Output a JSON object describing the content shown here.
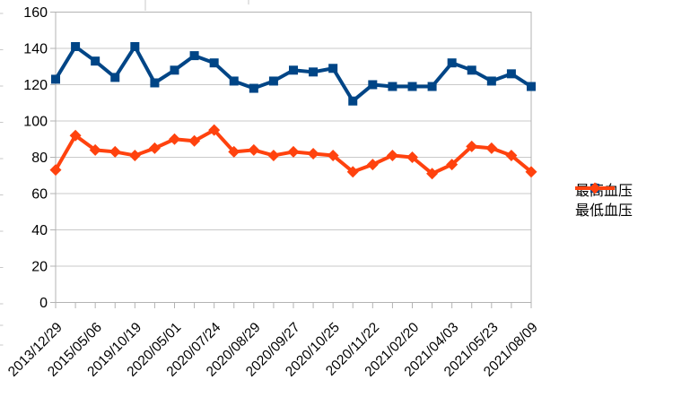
{
  "colors": {
    "background": "#ffffff",
    "axis": "#b3b3b3",
    "grid": "#c9c9c9",
    "text": "#000000",
    "artifact": "#c9c9c9"
  },
  "chart_data": {
    "type": "line",
    "title": "",
    "xlabel": "",
    "ylabel": "",
    "ylim": [
      0,
      160
    ],
    "y_ticks": [
      0,
      20,
      40,
      60,
      80,
      100,
      120,
      140,
      160
    ],
    "grid": "horizontal",
    "legend_position": "right",
    "x_label_every_n_points": 2,
    "x_labels": [
      "2013/12/29",
      "2015/05/06",
      "2019/10/19",
      "2020/05/01",
      "2020/07/24",
      "2020/08/29",
      "2020/09/27",
      "2020/10/25",
      "2020/11/22",
      "2021/02/20",
      "2021/04/03",
      "2021/05/23",
      "2021/08/09"
    ],
    "series": [
      {
        "name": "最高血压",
        "color": "#004586",
        "marker": "square",
        "values": [
          123,
          141,
          133,
          124,
          141,
          121,
          128,
          136,
          132,
          122,
          118,
          122,
          128,
          127,
          129,
          111,
          120,
          119,
          119,
          119,
          132,
          128,
          122,
          126,
          119
        ]
      },
      {
        "name": "最低血压",
        "color": "#ff420e",
        "marker": "diamond",
        "values": [
          73,
          92,
          84,
          83,
          81,
          85,
          90,
          89,
          95,
          83,
          84,
          81,
          83,
          82,
          81,
          72,
          76,
          81,
          80,
          71,
          76,
          86,
          85,
          81,
          72
        ]
      }
    ]
  }
}
